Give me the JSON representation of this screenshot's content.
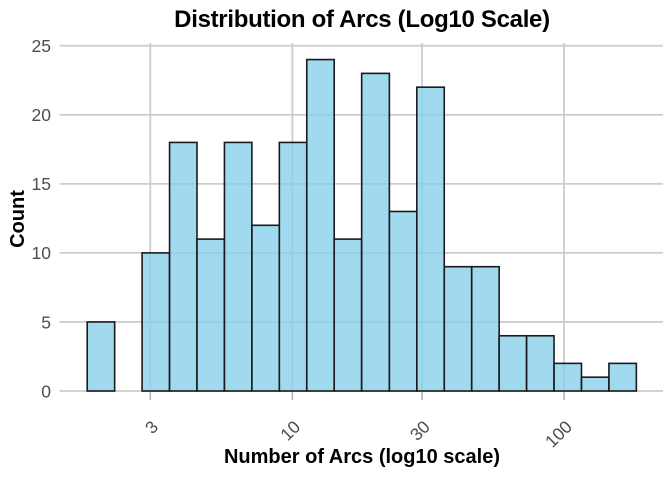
{
  "chart_data": {
    "type": "bar",
    "subtype": "histogram",
    "title": "Distribution of Arcs (Log10 Scale)",
    "xlabel": "Number of Arcs (log10 scale)",
    "ylabel": "Count",
    "x_scale": "log10",
    "x_tick_values": [
      3,
      10,
      30,
      100
    ],
    "x_tick_labels": [
      "3",
      "10",
      "30",
      "100"
    ],
    "x_tick_rotation_deg": 45,
    "y_tick_values": [
      0,
      5,
      10,
      15,
      20,
      25
    ],
    "y_tick_labels": [
      "0",
      "5",
      "10",
      "15",
      "20",
      "25"
    ],
    "ylim": [
      0,
      25.2
    ],
    "xlim_log10": [
      0.143,
      2.364
    ],
    "grid": "major-only",
    "legend": "none",
    "bins": {
      "log10_edges": [
        0.245,
        0.346,
        0.447,
        0.548,
        0.649,
        0.75,
        0.851,
        0.952,
        1.053,
        1.154,
        1.255,
        1.357,
        1.458,
        1.559,
        1.66,
        1.761,
        1.862,
        1.963,
        2.064,
        2.165,
        2.266
      ],
      "counts": [
        5,
        0,
        10,
        18,
        11,
        18,
        12,
        18,
        24,
        11,
        23,
        13,
        22,
        9,
        9,
        4,
        4,
        2,
        1,
        2
      ]
    },
    "colors": {
      "background": "#ffffff",
      "bar_fill": "#87CEEB",
      "bar_fill_alpha": 0.78,
      "bar_stroke": "#1a1a1a",
      "grid": "#cdcdcd",
      "tick_mark": "#b5b5b5",
      "tick_label_color": "#4d4d4d",
      "text": "#000000"
    }
  }
}
